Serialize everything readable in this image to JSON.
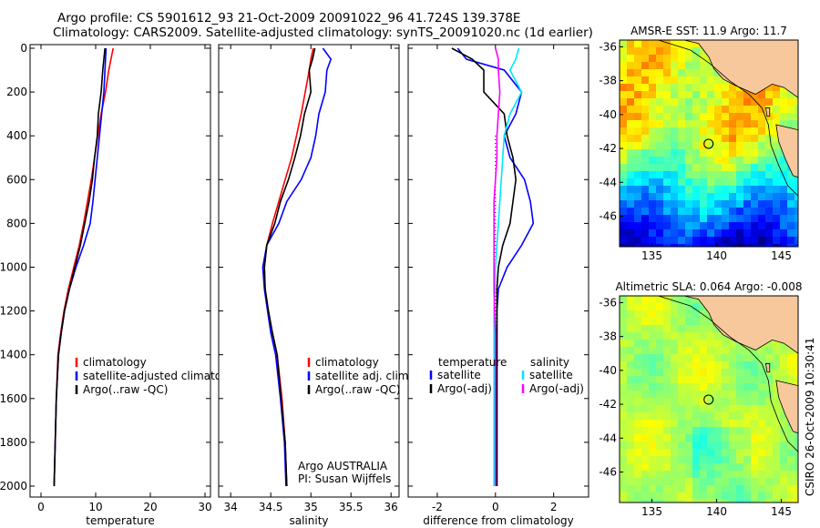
{
  "titles": {
    "line1": "Argo profile: CS 5901612_93 21-Oct-2009 20091022_96 41.724S 139.378E",
    "line2": "Climatology: CARS2009. Satellite-adjusted climatology: synTS_20091020.nc (1d earlier)"
  },
  "colors": {
    "climatology": "#ff0000",
    "satellite": "#0000ff",
    "argo": "#000000",
    "salinity_satellite": "#00e5ff",
    "salinity_argo": "#ff00ff",
    "land": "#f7c89b"
  },
  "chart_data": [
    {
      "type": "line",
      "id": "temperature",
      "xlabel": "temperature",
      "ylabel": "",
      "xlim": [
        -2,
        31
      ],
      "ylim": [
        2050,
        0
      ],
      "y_reversed": true,
      "xticks": [
        0,
        10,
        20,
        30
      ],
      "yticks": [
        0,
        200,
        400,
        600,
        800,
        1000,
        1200,
        1400,
        1600,
        1800,
        2000
      ],
      "legend": [
        "climatology",
        "satellite-adjusted climatology",
        "Argo(..raw -QC)"
      ],
      "series": [
        {
          "name": "climatology",
          "color": "#ff0000",
          "x": [
            13.2,
            12.8,
            12.4,
            11.8,
            11.0,
            10.4,
            9.8,
            9.2,
            8.5,
            7.8,
            7.0,
            6.0,
            5.0,
            4.2,
            3.6,
            3.1,
            2.8,
            2.6,
            2.4
          ],
          "y": [
            0,
            50,
            100,
            200,
            300,
            400,
            500,
            600,
            700,
            800,
            900,
            1000,
            1100,
            1200,
            1300,
            1400,
            1600,
            1800,
            2000
          ]
        },
        {
          "name": "satellite-adjusted climatology",
          "color": "#0000ff",
          "x": [
            11.9,
            11.8,
            11.7,
            11.5,
            11.1,
            10.7,
            10.3,
            9.9,
            9.5,
            9.0,
            7.8,
            6.4,
            5.2,
            4.3,
            3.7,
            3.2,
            2.8,
            2.6,
            2.4
          ],
          "y": [
            0,
            50,
            100,
            200,
            300,
            400,
            500,
            600,
            700,
            800,
            900,
            1000,
            1100,
            1200,
            1300,
            1400,
            1600,
            1800,
            2000
          ]
        },
        {
          "name": "Argo(..raw -QC)",
          "color": "#000000",
          "x": [
            11.7,
            11.5,
            11.3,
            11.0,
            10.5,
            10.3,
            9.8,
            9.4,
            8.8,
            8.0,
            7.2,
            6.2,
            5.2,
            4.3,
            3.7,
            3.2,
            2.8,
            2.6,
            2.4
          ],
          "y": [
            0,
            50,
            100,
            200,
            300,
            400,
            500,
            600,
            700,
            800,
            900,
            1000,
            1100,
            1200,
            1300,
            1400,
            1600,
            1800,
            2000
          ]
        }
      ]
    },
    {
      "type": "line",
      "id": "salinity",
      "xlabel": "salinity",
      "ylabel": "",
      "xlim": [
        33.85,
        36.1
      ],
      "ylim": [
        2050,
        0
      ],
      "y_reversed": true,
      "xticks": [
        34,
        34.5,
        35,
        35.5,
        36
      ],
      "xticklabels": [
        "34",
        "34.5",
        "35",
        "35.5",
        "36"
      ],
      "legend": [
        "climatology",
        "satellite adj. clim.",
        "Argo(..raw -QC)"
      ],
      "annotations": [
        "Argo AUSTRALIA",
        "PI: Susan Wijffels"
      ],
      "series": [
        {
          "name": "climatology",
          "color": "#ff0000",
          "x": [
            35.03,
            35.0,
            34.98,
            34.93,
            34.88,
            34.82,
            34.76,
            34.68,
            34.6,
            34.52,
            34.45,
            34.42,
            34.43,
            34.47,
            34.52,
            34.58,
            34.64,
            34.68,
            34.7
          ],
          "y": [
            0,
            50,
            100,
            200,
            300,
            400,
            500,
            600,
            700,
            800,
            900,
            1000,
            1100,
            1200,
            1300,
            1400,
            1600,
            1800,
            2000
          ]
        },
        {
          "name": "satellite adj. clim.",
          "color": "#0000ff",
          "x": [
            35.15,
            35.25,
            35.2,
            35.18,
            35.1,
            35.06,
            35.0,
            34.88,
            34.7,
            34.6,
            34.45,
            34.4,
            34.42,
            34.46,
            34.5,
            34.56,
            34.62,
            34.67,
            34.69
          ],
          "y": [
            0,
            50,
            100,
            200,
            300,
            400,
            500,
            600,
            700,
            800,
            900,
            1000,
            1100,
            1200,
            1300,
            1400,
            1600,
            1800,
            2000
          ]
        },
        {
          "name": "Argo(..raw -QC)",
          "color": "#000000",
          "x": [
            35.05,
            35.02,
            34.98,
            35.0,
            34.92,
            34.87,
            34.8,
            34.72,
            34.62,
            34.55,
            34.45,
            34.42,
            34.43,
            34.47,
            34.52,
            34.58,
            34.63,
            34.68,
            34.7
          ],
          "y": [
            0,
            50,
            100,
            200,
            300,
            400,
            500,
            600,
            700,
            800,
            900,
            1000,
            1100,
            1200,
            1300,
            1400,
            1600,
            1800,
            2000
          ]
        }
      ]
    },
    {
      "type": "line",
      "id": "difference",
      "xlabel": "difference from climatology",
      "ylabel": "",
      "xlim": [
        -3,
        3.2
      ],
      "ylim": [
        2050,
        0
      ],
      "y_reversed": true,
      "xticks": [
        -2,
        0,
        2
      ],
      "legend_groups": [
        {
          "header": "temperature",
          "items": [
            "satellite",
            "Argo(-adj)"
          ]
        },
        {
          "header": "salinity",
          "items": [
            "satellite",
            "Argo(-adj)"
          ]
        }
      ],
      "series": [
        {
          "name": "temperature satellite",
          "color": "#0000ff",
          "x": [
            -1.3,
            -1.0,
            0.3,
            0.9,
            0.7,
            0.3,
            0.5,
            1.0,
            1.2,
            1.3,
            0.9,
            0.4,
            0.1,
            0.05,
            0.05,
            0.05,
            0.05,
            0.05,
            0.05
          ],
          "y": [
            0,
            50,
            100,
            200,
            300,
            400,
            500,
            600,
            700,
            800,
            900,
            1000,
            1100,
            1200,
            1300,
            1400,
            1600,
            1800,
            2000
          ]
        },
        {
          "name": "temperature Argo(-adj)",
          "color": "#000000",
          "x": [
            -1.5,
            -0.8,
            -0.4,
            -0.4,
            0.3,
            0.4,
            0.6,
            0.7,
            0.6,
            0.5,
            0.25,
            0.1,
            0.05,
            0.05,
            0.05,
            0.05,
            0.05,
            0.05,
            0.05
          ],
          "y": [
            0,
            50,
            100,
            200,
            300,
            400,
            500,
            600,
            700,
            800,
            900,
            1000,
            1100,
            1200,
            1300,
            1400,
            1600,
            1800,
            2000
          ]
        },
        {
          "name": "salinity satellite",
          "color": "#00e5ff",
          "x": [
            0.8,
            0.7,
            0.5,
            0.9,
            0.5,
            0.3,
            0.25,
            0.2,
            0.15,
            0.1,
            0.05,
            0.0,
            -0.02,
            -0.05,
            -0.05,
            -0.05,
            -0.05,
            -0.05,
            -0.05
          ],
          "y": [
            0,
            50,
            100,
            200,
            300,
            400,
            500,
            600,
            700,
            800,
            900,
            1000,
            1100,
            1200,
            1300,
            1400,
            1600,
            1800,
            2000
          ]
        },
        {
          "name": "salinity Argo(-adj)",
          "color": "#ff00ff",
          "x": [
            0.0,
            0.1,
            0.1,
            0.15,
            0.1,
            0.05,
            0.05,
            0.0,
            -0.05,
            -0.05,
            -0.05,
            -0.05,
            -0.05,
            -0.03,
            0.0,
            0.0,
            0.0,
            0.0,
            0.0
          ],
          "y": [
            0,
            50,
            100,
            200,
            300,
            400,
            500,
            600,
            700,
            800,
            900,
            1000,
            1100,
            1200,
            1300,
            1400,
            1600,
            1800,
            2000
          ]
        }
      ]
    },
    {
      "type": "heatmap",
      "id": "sst_map",
      "title": "AMSR-E SST: 11.9 Argo: 11.7",
      "xlim": [
        132.5,
        146.3
      ],
      "ylim": [
        -47.8,
        -35.6
      ],
      "xticks": [
        135,
        140,
        145
      ],
      "yticks": [
        -36,
        -38,
        -40,
        -42,
        -44,
        -46
      ],
      "marker": {
        "lon": 139.378,
        "lat": -41.724
      }
    },
    {
      "type": "heatmap",
      "id": "sla_map",
      "title": "Altimetric SLA: 0.064 Argo: -0.008",
      "xlim": [
        132.5,
        146.3
      ],
      "ylim": [
        -47.8,
        -35.6
      ],
      "xticks": [
        135,
        140,
        145
      ],
      "yticks": [
        -36,
        -38,
        -40,
        -42,
        -44,
        -46
      ],
      "marker": {
        "lon": 139.378,
        "lat": -41.724
      }
    }
  ],
  "sidebar_text": "CSIRO 26-Oct-2009 10:30:41"
}
